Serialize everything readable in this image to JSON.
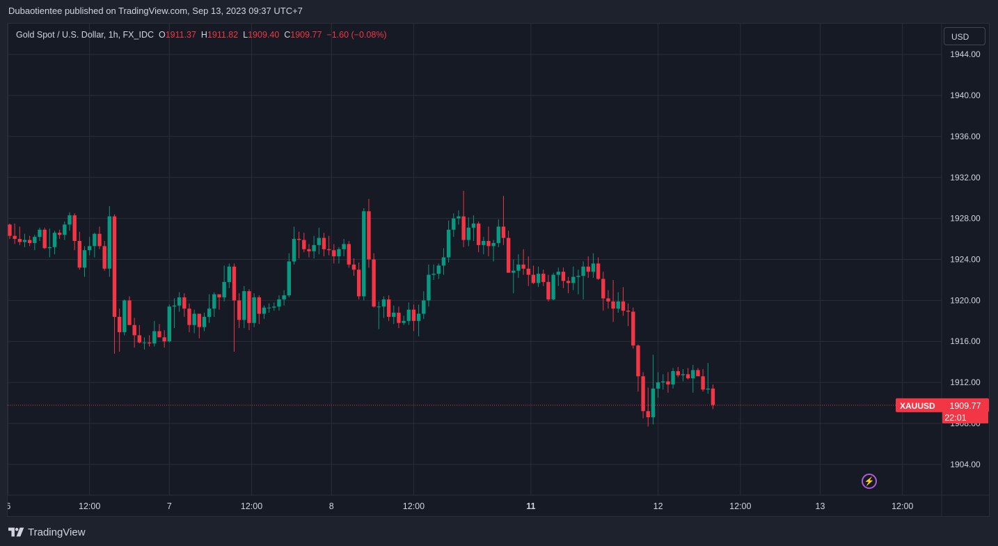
{
  "header": {
    "publisher": "Dubaotientee published on TradingView.com, Sep 13, 2023 09:37 UTC+7"
  },
  "legend": {
    "symbol": "Gold Spot / U.S. Dollar, 1h, FX_IDC",
    "o_label": "O",
    "o_value": "1911.37",
    "h_label": "H",
    "h_value": "1911.82",
    "l_label": "L",
    "l_value": "1909.40",
    "c_label": "C",
    "c_value": "1909.77",
    "change": "−1.60 (−0.08%)"
  },
  "currency_button": "USD",
  "price_label": {
    "ticker": "XAUUSD",
    "price": "1909.77",
    "countdown": "22:01"
  },
  "footer": {
    "brand": "TradingView"
  },
  "icons": {
    "alert": "lightning-icon"
  },
  "colors": {
    "up": "#089981",
    "down": "#f23645",
    "background": "#161a25",
    "grid": "#2a2e39",
    "text": "#d1d4dc",
    "last_price": "#f23645"
  },
  "chart_data": {
    "type": "candlestick",
    "title": "Gold Spot / U.S. Dollar, 1h, FX_IDC",
    "xlabel": "",
    "ylabel": "",
    "ylim": [
      1901,
      1947
    ],
    "y_ticks": [
      1904,
      1908,
      1912,
      1916,
      1920,
      1924,
      1928,
      1932,
      1936,
      1940,
      1944
    ],
    "y_tick_labels": [
      "1904.00",
      "1908.00",
      "1912.00",
      "1916.00",
      "1920.00",
      "1924.00",
      "1928.00",
      "1932.00",
      "1936.00",
      "1940.00",
      "1944.00"
    ],
    "x_ticks": [
      {
        "label": "6",
        "bar": -0.3,
        "bold": false
      },
      {
        "label": "12:00",
        "bar": 16,
        "bold": false
      },
      {
        "label": "7",
        "bar": 32,
        "bold": false
      },
      {
        "label": "12:00",
        "bar": 48.5,
        "bold": false
      },
      {
        "label": "8",
        "bar": 64.5,
        "bold": false
      },
      {
        "label": "12:00",
        "bar": 81,
        "bold": false
      },
      {
        "label": "11",
        "bar": 104.5,
        "bold": true
      },
      {
        "label": "12",
        "bar": 130,
        "bold": false
      },
      {
        "label": "12:00",
        "bar": 146.5,
        "bold": false
      },
      {
        "label": "13",
        "bar": 162.5,
        "bold": false
      },
      {
        "label": "12:00",
        "bar": 179,
        "bold": false
      }
    ],
    "last_price": 1909.77,
    "candles": [
      [
        1927.4,
        1927.5,
        1926.0,
        1926.3
      ],
      [
        1926.3,
        1927.5,
        1925.5,
        1926.0
      ],
      [
        1926.0,
        1927.2,
        1925.4,
        1925.7
      ],
      [
        1925.7,
        1926.5,
        1925.2,
        1925.9
      ],
      [
        1925.9,
        1926.3,
        1925.3,
        1925.6
      ],
      [
        1925.6,
        1926.4,
        1924.9,
        1926.2
      ],
      [
        1926.2,
        1927.1,
        1925.8,
        1926.9
      ],
      [
        1926.9,
        1927.1,
        1925.0,
        1925.1
      ],
      [
        1925.1,
        1927.0,
        1924.2,
        1925.2
      ],
      [
        1925.2,
        1926.8,
        1924.5,
        1926.6
      ],
      [
        1926.6,
        1926.9,
        1926.0,
        1926.4
      ],
      [
        1926.4,
        1927.7,
        1925.9,
        1927.4
      ],
      [
        1927.4,
        1928.6,
        1926.8,
        1928.3
      ],
      [
        1928.3,
        1928.5,
        1924.9,
        1925.8
      ],
      [
        1925.8,
        1926.7,
        1923.0,
        1923.2
      ],
      [
        1923.2,
        1925.3,
        1922.3,
        1924.9
      ],
      [
        1924.9,
        1926.2,
        1924.4,
        1925.3
      ],
      [
        1925.3,
        1926.6,
        1924.2,
        1926.5
      ],
      [
        1926.5,
        1927.2,
        1925.0,
        1925.3
      ],
      [
        1925.3,
        1925.8,
        1922.9,
        1923.1
      ],
      [
        1923.1,
        1929.2,
        1922.3,
        1928.2
      ],
      [
        1928.2,
        1928.4,
        1914.8,
        1918.4
      ],
      [
        1918.4,
        1919.2,
        1915.0,
        1916.9
      ],
      [
        1916.9,
        1920.1,
        1916.6,
        1920.0
      ],
      [
        1920.0,
        1920.4,
        1917.7,
        1917.6
      ],
      [
        1917.6,
        1918.3,
        1915.4,
        1916.6
      ],
      [
        1916.6,
        1917.6,
        1915.8,
        1915.9
      ],
      [
        1915.9,
        1916.4,
        1915.2,
        1915.9
      ],
      [
        1915.9,
        1916.6,
        1915.5,
        1915.8
      ],
      [
        1915.8,
        1918.0,
        1915.5,
        1917.0
      ],
      [
        1917.0,
        1917.7,
        1916.5,
        1916.4
      ],
      [
        1916.4,
        1917.1,
        1915.4,
        1916.0
      ],
      [
        1916.0,
        1919.6,
        1915.9,
        1919.4
      ],
      [
        1919.4,
        1920.2,
        1917.3,
        1919.5
      ],
      [
        1919.5,
        1920.8,
        1918.9,
        1920.3
      ],
      [
        1920.3,
        1920.7,
        1918.4,
        1919.2
      ],
      [
        1919.2,
        1919.7,
        1916.9,
        1917.6
      ],
      [
        1917.6,
        1919.1,
        1916.8,
        1918.7
      ],
      [
        1918.7,
        1918.4,
        1916.3,
        1917.4
      ],
      [
        1917.4,
        1918.8,
        1917.0,
        1918.4
      ],
      [
        1918.4,
        1920.6,
        1917.8,
        1919.2
      ],
      [
        1919.2,
        1920.8,
        1918.4,
        1920.6
      ],
      [
        1920.6,
        1920.6,
        1919.1,
        1920.3
      ],
      [
        1920.3,
        1923.4,
        1919.9,
        1921.8
      ],
      [
        1921.8,
        1923.6,
        1921.2,
        1923.3
      ],
      [
        1923.3,
        1923.6,
        1915.0,
        1920.0
      ],
      [
        1920.0,
        1920.7,
        1917.3,
        1918.1
      ],
      [
        1918.1,
        1921.4,
        1917.3,
        1920.9
      ],
      [
        1920.9,
        1921.1,
        1917.1,
        1917.8
      ],
      [
        1917.8,
        1920.7,
        1917.4,
        1920.3
      ],
      [
        1920.3,
        1920.5,
        1917.7,
        1918.7
      ],
      [
        1918.7,
        1919.5,
        1918.2,
        1919.3
      ],
      [
        1919.3,
        1919.7,
        1918.8,
        1919.3
      ],
      [
        1919.3,
        1919.8,
        1919.0,
        1919.4
      ],
      [
        1919.4,
        1920.5,
        1919.0,
        1920.1
      ],
      [
        1920.1,
        1921.0,
        1919.5,
        1920.5
      ],
      [
        1920.5,
        1924.6,
        1920.3,
        1923.8
      ],
      [
        1923.8,
        1927.2,
        1923.5,
        1926.0
      ],
      [
        1926.0,
        1926.7,
        1924.1,
        1925.9
      ],
      [
        1925.9,
        1926.6,
        1924.7,
        1925.0
      ],
      [
        1925.0,
        1925.5,
        1924.2,
        1924.8
      ],
      [
        1924.8,
        1926.3,
        1924.1,
        1925.4
      ],
      [
        1925.4,
        1927.1,
        1924.5,
        1926.1
      ],
      [
        1926.1,
        1926.6,
        1924.3,
        1925.0
      ],
      [
        1925.0,
        1926.3,
        1924.4,
        1924.9
      ],
      [
        1924.9,
        1925.5,
        1923.6,
        1924.3
      ],
      [
        1924.3,
        1925.2,
        1923.6,
        1925.0
      ],
      [
        1925.0,
        1926.0,
        1924.3,
        1925.5
      ],
      [
        1925.5,
        1925.8,
        1923.2,
        1923.5
      ],
      [
        1923.5,
        1924.1,
        1922.4,
        1923.0
      ],
      [
        1923.0,
        1923.7,
        1920.1,
        1920.4
      ],
      [
        1920.4,
        1929.0,
        1920.0,
        1928.7
      ],
      [
        1928.7,
        1929.9,
        1923.2,
        1924.0
      ],
      [
        1924.0,
        1924.6,
        1919.3,
        1919.4
      ],
      [
        1919.4,
        1919.9,
        1917.2,
        1919.4
      ],
      [
        1919.4,
        1920.4,
        1918.3,
        1920.1
      ],
      [
        1920.1,
        1920.5,
        1918.0,
        1918.4
      ],
      [
        1918.4,
        1919.5,
        1917.7,
        1918.8
      ],
      [
        1918.8,
        1919.4,
        1917.3,
        1917.8
      ],
      [
        1917.8,
        1918.5,
        1917.6,
        1918.0
      ],
      [
        1918.0,
        1919.8,
        1917.6,
        1919.1
      ],
      [
        1919.1,
        1919.6,
        1917.0,
        1918.0
      ],
      [
        1918.0,
        1919.6,
        1916.5,
        1918.7
      ],
      [
        1918.7,
        1920.9,
        1918.2,
        1920.0
      ],
      [
        1920.0,
        1923.5,
        1919.4,
        1922.5
      ],
      [
        1922.5,
        1923.5,
        1922.0,
        1922.6
      ],
      [
        1922.6,
        1923.6,
        1922.1,
        1923.4
      ],
      [
        1923.4,
        1925.1,
        1922.5,
        1924.2
      ],
      [
        1924.2,
        1927.8,
        1923.7,
        1926.9
      ],
      [
        1926.9,
        1928.5,
        1926.2,
        1928.0
      ],
      [
        1928.0,
        1928.8,
        1927.4,
        1928.2
      ],
      [
        1928.2,
        1930.7,
        1925.2,
        1925.9
      ],
      [
        1925.9,
        1928.1,
        1925.3,
        1927.1
      ],
      [
        1927.1,
        1928.3,
        1925.8,
        1927.5
      ],
      [
        1927.5,
        1927.7,
        1924.7,
        1925.4
      ],
      [
        1925.4,
        1926.2,
        1924.5,
        1925.8
      ],
      [
        1925.8,
        1927.2,
        1924.3,
        1925.3
      ],
      [
        1925.3,
        1925.9,
        1923.8,
        1925.6
      ],
      [
        1925.6,
        1927.9,
        1925.2,
        1927.2
      ],
      [
        1927.2,
        1930.2,
        1925.4,
        1926.1
      ],
      [
        1926.1,
        1926.8,
        1922.9,
        1922.7
      ],
      [
        1922.7,
        1924.0,
        1920.7,
        1922.9
      ],
      [
        1922.9,
        1924.5,
        1922.2,
        1923.5
      ],
      [
        1923.5,
        1925.0,
        1922.5,
        1923.1
      ],
      [
        1923.1,
        1924.3,
        1921.4,
        1922.5
      ],
      [
        1922.5,
        1923.4,
        1921.6,
        1921.7
      ],
      [
        1921.7,
        1923.3,
        1921.3,
        1922.6
      ],
      [
        1922.6,
        1923.0,
        1921.4,
        1921.8
      ],
      [
        1921.8,
        1922.5,
        1919.9,
        1920.1
      ],
      [
        1920.1,
        1922.7,
        1920.0,
        1922.5
      ],
      [
        1922.5,
        1923.2,
        1921.4,
        1922.8
      ],
      [
        1922.8,
        1923.2,
        1921.2,
        1921.9
      ],
      [
        1921.9,
        1922.3,
        1920.7,
        1921.7
      ],
      [
        1921.7,
        1923.3,
        1921.0,
        1922.3
      ],
      [
        1922.3,
        1923.0,
        1920.6,
        1922.4
      ],
      [
        1922.4,
        1923.8,
        1920.1,
        1923.3
      ],
      [
        1923.3,
        1924.3,
        1922.2,
        1922.8
      ],
      [
        1922.8,
        1924.6,
        1922.2,
        1923.6
      ],
      [
        1923.6,
        1924.2,
        1922.0,
        1922.1
      ],
      [
        1922.1,
        1922.8,
        1919.0,
        1920.2
      ],
      [
        1920.2,
        1921.0,
        1919.2,
        1919.9
      ],
      [
        1919.9,
        1922.0,
        1917.9,
        1919.2
      ],
      [
        1919.2,
        1920.8,
        1918.8,
        1919.9
      ],
      [
        1919.9,
        1921.3,
        1918.5,
        1919.0
      ],
      [
        1919.0,
        1919.7,
        1917.5,
        1918.9
      ],
      [
        1918.9,
        1919.3,
        1915.3,
        1915.6
      ],
      [
        1915.6,
        1915.7,
        1911.1,
        1912.6
      ],
      [
        1912.6,
        1913.0,
        1908.5,
        1909.2
      ],
      [
        1909.2,
        1911.5,
        1907.7,
        1908.6
      ],
      [
        1908.6,
        1914.7,
        1907.9,
        1911.4
      ],
      [
        1911.4,
        1913.0,
        1910.5,
        1912.0
      ],
      [
        1912.0,
        1912.8,
        1911.3,
        1912.1
      ],
      [
        1912.1,
        1913.0,
        1911.0,
        1911.8
      ],
      [
        1911.8,
        1913.4,
        1911.4,
        1913.1
      ],
      [
        1913.1,
        1913.5,
        1912.5,
        1912.7
      ],
      [
        1912.7,
        1913.3,
        1912.1,
        1912.8
      ],
      [
        1912.8,
        1913.4,
        1912.3,
        1912.4
      ],
      [
        1912.4,
        1913.7,
        1911.0,
        1913.2
      ],
      [
        1913.2,
        1913.4,
        1912.7,
        1912.6
      ],
      [
        1912.6,
        1913.3,
        1911.1,
        1911.3
      ],
      [
        1911.3,
        1913.9,
        1910.9,
        1911.4
      ],
      [
        1911.4,
        1911.8,
        1909.4,
        1909.8
      ]
    ]
  }
}
